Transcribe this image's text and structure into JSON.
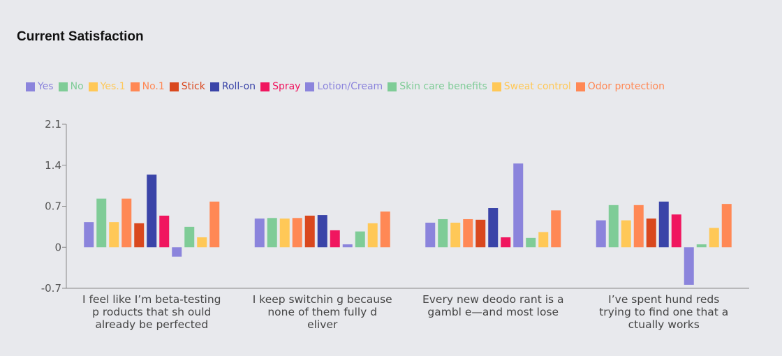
{
  "chart_data": {
    "type": "bar",
    "title": "Current Satisfaction",
    "xlabel": "",
    "ylabel": "",
    "ylim": [
      -0.7,
      2.1
    ],
    "yticks": [
      "2.1",
      "1.4",
      "0.7",
      "0",
      "-0.7"
    ],
    "ytick_values": [
      2.1,
      1.4,
      0.7,
      0,
      -0.7
    ],
    "legend_position": "top",
    "grid": false,
    "categories": [
      "I feel like I’m beta-testing p roducts that sh ould already be perfected",
      "I keep switchin g because none of them fully d eliver",
      "Every new deodo rant is a gambl e—and most lose",
      "I’ve spent hund reds trying to find one that a ctually works"
    ],
    "category_lines": [
      [
        "I feel like I’m beta-testing",
        "p roducts that sh ould",
        "already be perfected"
      ],
      [
        "I keep switchin g because",
        "none of them fully d",
        "eliver"
      ],
      [
        "Every new deodo rant is a",
        "gambl e—and most lose"
      ],
      [
        "I’ve spent hund reds",
        "trying to find one that a",
        "ctually works"
      ]
    ],
    "series": [
      {
        "name": "Yes",
        "color": "#8b84dc",
        "values": [
          0.43,
          0.49,
          0.42,
          0.46
        ]
      },
      {
        "name": "No",
        "color": "#7fcc97",
        "values": [
          0.83,
          0.5,
          0.48,
          0.72
        ]
      },
      {
        "name": "Yes.1",
        "color": "#ffc857",
        "values": [
          0.43,
          0.49,
          0.42,
          0.46
        ]
      },
      {
        "name": "No.1",
        "color": "#ff8855",
        "values": [
          0.83,
          0.5,
          0.48,
          0.72
        ]
      },
      {
        "name": "Stick",
        "color": "#d9481e",
        "values": [
          0.41,
          0.54,
          0.47,
          0.49
        ]
      },
      {
        "name": "Roll-on",
        "color": "#3a44a8",
        "values": [
          1.24,
          0.55,
          0.67,
          0.78
        ]
      },
      {
        "name": "Spray",
        "color": "#f0165f",
        "values": [
          0.54,
          0.29,
          0.17,
          0.56
        ]
      },
      {
        "name": "Lotion/Cream",
        "color": "#8b84dc",
        "values": [
          -0.16,
          0.05,
          1.43,
          -0.64
        ]
      },
      {
        "name": "Skin care benefits",
        "color": "#7fcc97",
        "values": [
          0.35,
          0.27,
          0.16,
          0.05
        ]
      },
      {
        "name": "Sweat control",
        "color": "#ffc857",
        "values": [
          0.17,
          0.41,
          0.26,
          0.33
        ]
      },
      {
        "name": "Odor protection",
        "color": "#ff8855",
        "values": [
          0.78,
          0.61,
          0.63,
          0.74
        ]
      }
    ]
  }
}
